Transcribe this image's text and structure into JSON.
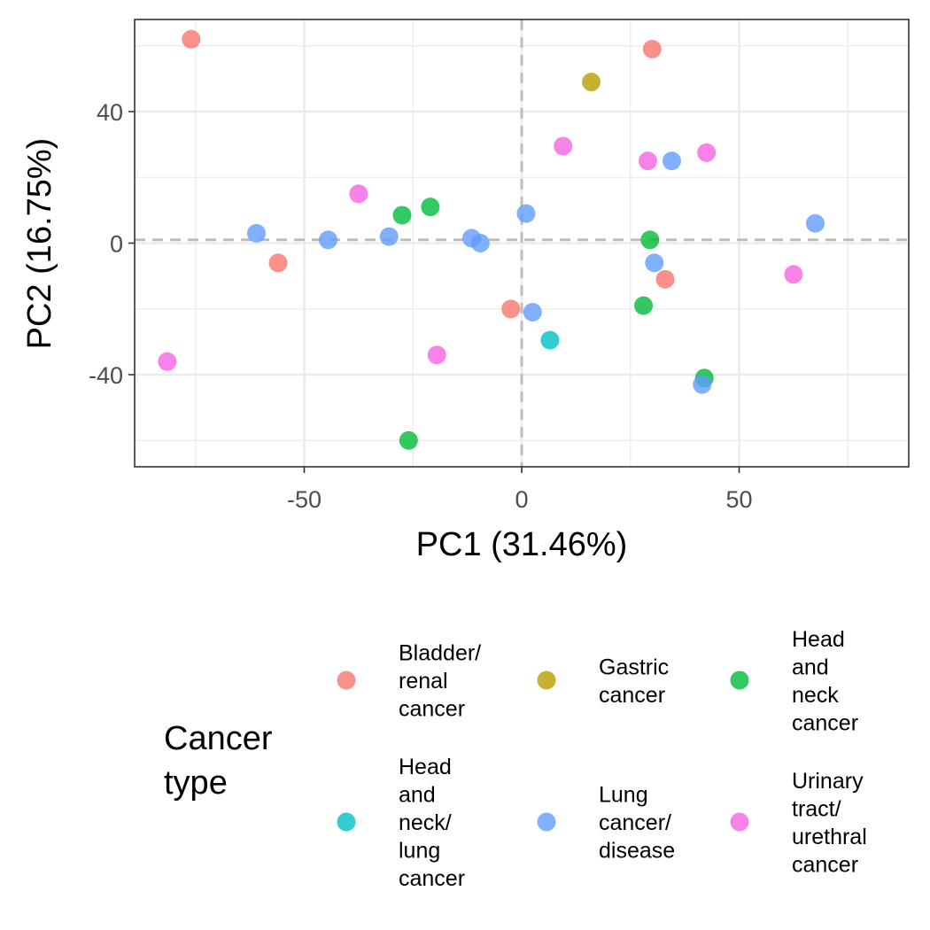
{
  "chart_data": {
    "type": "scatter",
    "xlabel": "PC1 (31.46%)",
    "ylabel": "PC2 (16.75%)",
    "xlim": [
      -89,
      89
    ],
    "ylim": [
      -68,
      68
    ],
    "x_ticks": [
      -50,
      0,
      50
    ],
    "y_ticks": [
      -40,
      0,
      40
    ],
    "x_tick_labels": [
      "-50",
      "0",
      "50"
    ],
    "y_tick_labels": [
      "-40",
      "0",
      "40"
    ],
    "grid": true,
    "reference_lines": {
      "x": 0,
      "y": 1,
      "style": "dashed"
    },
    "legend": {
      "title": "Cancer type",
      "placement": "bottom",
      "entries": [
        {
          "label": "Bladder/ renal cancer",
          "color": "#F8766D"
        },
        {
          "label": "Gastric cancer",
          "color": "#B79F00"
        },
        {
          "label": "Head and neck cancer",
          "color": "#00BA38"
        },
        {
          "label": "Head and neck/ lung cancer",
          "color": "#00BFC4"
        },
        {
          "label": "Lung cancer/ disease",
          "color": "#619CFF"
        },
        {
          "label": "Urinary tract/ urethral cancer",
          "color": "#F564E3"
        }
      ]
    },
    "series": [
      {
        "name": "Bladder/ renal cancer",
        "color": "#F8766D",
        "points": [
          [
            -76,
            62
          ],
          [
            30,
            59
          ],
          [
            -56,
            -6
          ],
          [
            33,
            -11
          ],
          [
            -2.5,
            -20
          ]
        ]
      },
      {
        "name": "Gastric cancer",
        "color": "#B79F00",
        "points": [
          [
            16,
            49
          ]
        ]
      },
      {
        "name": "Head and neck cancer",
        "color": "#00BA38",
        "points": [
          [
            -27.5,
            8.5
          ],
          [
            -21,
            11
          ],
          [
            29.5,
            1
          ],
          [
            28,
            -19
          ],
          [
            42,
            -41
          ],
          [
            -26,
            -60
          ]
        ]
      },
      {
        "name": "Head and neck/ lung cancer",
        "color": "#00BFC4",
        "points": [
          [
            6.5,
            -29.5
          ]
        ]
      },
      {
        "name": "Lung cancer/ disease",
        "color": "#619CFF",
        "points": [
          [
            -61,
            3
          ],
          [
            -44.5,
            1
          ],
          [
            -30.5,
            2
          ],
          [
            -11.5,
            1.5
          ],
          [
            -9.5,
            0
          ],
          [
            1,
            9
          ],
          [
            34.5,
            25
          ],
          [
            67.5,
            6
          ],
          [
            30.5,
            -6
          ],
          [
            2.5,
            -21
          ],
          [
            41.5,
            -43
          ]
        ]
      },
      {
        "name": "Urinary tract/ urethral cancer",
        "color": "#F564E3",
        "points": [
          [
            -37.5,
            15
          ],
          [
            9.5,
            29.5
          ],
          [
            29,
            25
          ],
          [
            42.5,
            27.5
          ],
          [
            62.5,
            -9.5
          ],
          [
            -81.5,
            -36
          ],
          [
            -19.5,
            -34
          ]
        ]
      }
    ]
  }
}
